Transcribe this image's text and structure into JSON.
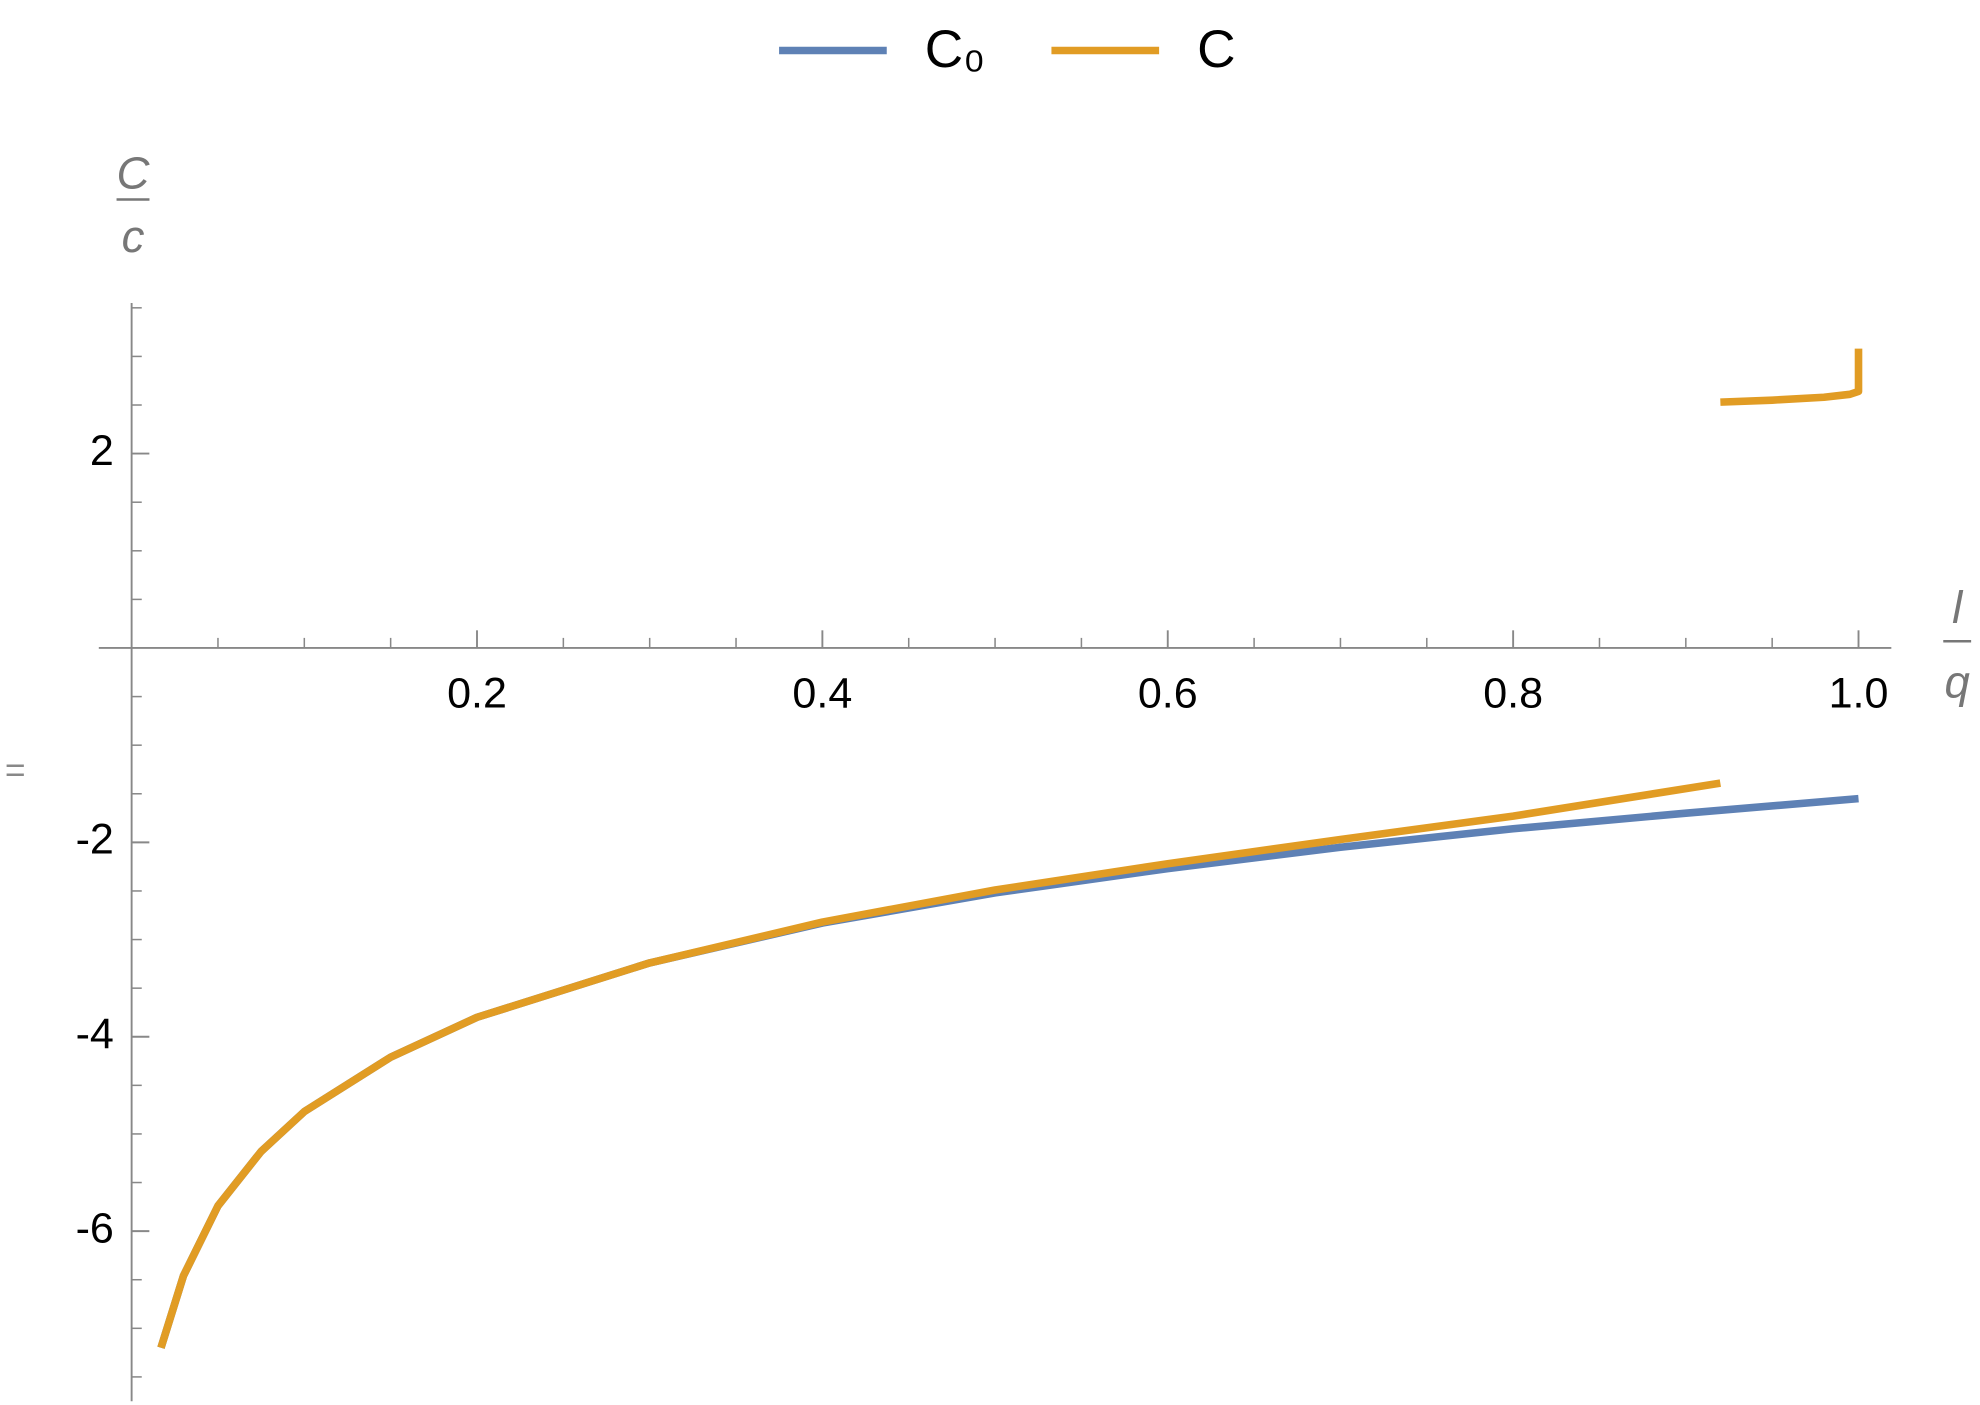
{
  "chart_data": {
    "type": "line",
    "ylabel": {
      "numerator": "C",
      "denominator": "c"
    },
    "xlabel": {
      "numerator": "l",
      "denominator": "q"
    },
    "annotation": "=",
    "series": [
      {
        "name": "C₀",
        "color": "#5e81b5",
        "x": [
          0.017,
          0.03,
          0.05,
          0.075,
          0.1,
          0.15,
          0.2,
          0.3,
          0.4,
          0.5,
          0.6,
          0.7,
          0.8,
          0.9,
          1.0
        ],
        "values": [
          -7.2,
          -6.46,
          -5.74,
          -5.18,
          -4.77,
          -4.21,
          -3.8,
          -3.24,
          -2.83,
          -2.52,
          -2.27,
          -2.05,
          -1.86,
          -1.7,
          -1.55
        ]
      },
      {
        "name": "C",
        "color": "#e19c24",
        "x": [
          0.017,
          0.03,
          0.05,
          0.075,
          0.1,
          0.15,
          0.2,
          0.3,
          0.4,
          0.5,
          0.6,
          0.7,
          0.8,
          0.92,
          null,
          0.92,
          0.95,
          0.98,
          0.995,
          1.0,
          1.0
        ],
        "values": [
          -7.2,
          -6.46,
          -5.74,
          -5.18,
          -4.77,
          -4.21,
          -3.8,
          -3.24,
          -2.82,
          -2.49,
          -2.22,
          -1.97,
          -1.73,
          -1.39,
          null,
          2.53,
          2.55,
          2.58,
          2.61,
          2.64,
          3.08
        ]
      }
    ],
    "xlim": [
      -0.019,
      1.019
    ],
    "ylim": [
      -7.75,
      3.55
    ],
    "xticks": [
      0.2,
      0.4,
      0.6,
      0.8,
      {
        "value": 1,
        "label": "1.0"
      }
    ],
    "yticks": [
      -6,
      -4,
      -2,
      2
    ],
    "xminorticks": [
      0.05,
      0.1,
      0.15,
      0.25,
      0.3,
      0.35,
      0.45,
      0.5,
      0.55,
      0.65,
      0.7,
      0.75,
      0.85,
      0.9,
      0.95
    ],
    "yminorticks": [
      -7.5,
      -7,
      -6.5,
      -5.5,
      -5,
      -4.5,
      -3.5,
      -3,
      -2.5,
      -1.5,
      -1,
      -0.5,
      0.5,
      1,
      1.5,
      2.5,
      3,
      3.5
    ],
    "legend": "top"
  }
}
